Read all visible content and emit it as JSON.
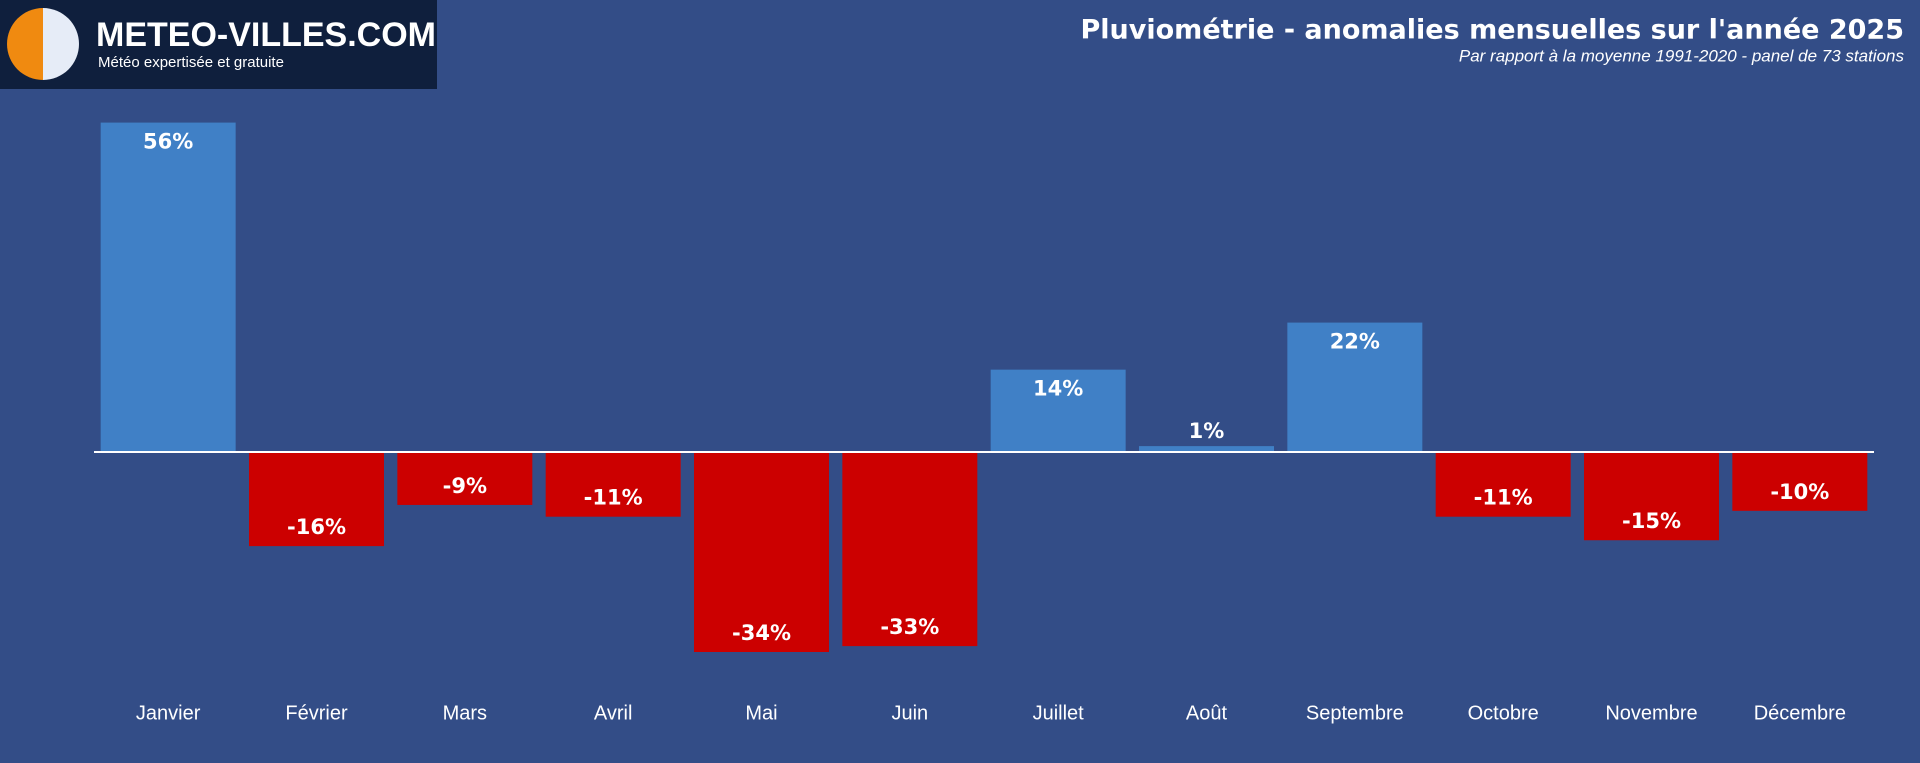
{
  "logo": {
    "name": "METEO-VILLES.COM",
    "tagline": "Météo expertisée et gratuite"
  },
  "chart_data": {
    "type": "bar",
    "title": "Pluviométrie - anomalies mensuelles sur l'année 2025",
    "subtitle": "Par rapport à la moyenne 1991-2020 - panel de 73 stations",
    "categories": [
      "Janvier",
      "Février",
      "Mars",
      "Avril",
      "Mai",
      "Juin",
      "Juillet",
      "Août",
      "Septembre",
      "Octobre",
      "Novembre",
      "Décembre"
    ],
    "values": [
      56,
      -16,
      -9,
      -11,
      -34,
      -33,
      14,
      1,
      22,
      -11,
      -15,
      -10
    ],
    "value_labels": [
      "56%",
      "-16%",
      "-9%",
      "-11%",
      "-34%",
      "-33%",
      "14%",
      "1%",
      "22%",
      "-11%",
      "-15%",
      "-10%"
    ],
    "colors": {
      "positive": "#4080c6",
      "negative": "#cc0000"
    }
  }
}
